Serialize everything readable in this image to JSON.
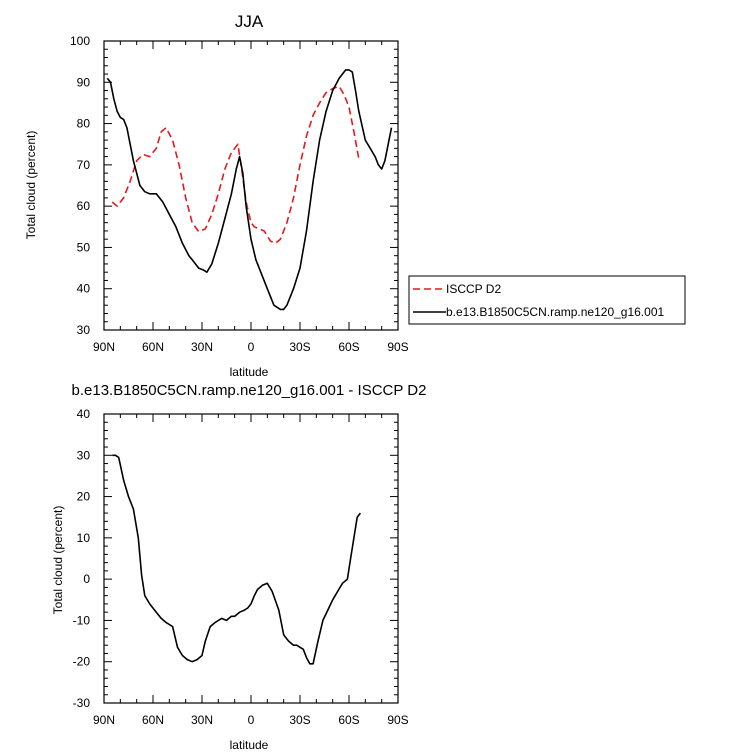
{
  "chart_data": [
    {
      "type": "line",
      "title": "JJA",
      "xlabel": "latitude",
      "ylabel": "Total cloud (percent)",
      "xlim": [
        90,
        -90
      ],
      "ylim": [
        30,
        100
      ],
      "x_ticks": [
        90,
        60,
        30,
        0,
        -30,
        -60,
        -90
      ],
      "x_tick_labels": [
        "90N",
        "60N",
        "30N",
        "0",
        "30S",
        "60S",
        "90S"
      ],
      "y_ticks": [
        30,
        40,
        50,
        60,
        70,
        80,
        90,
        100
      ],
      "y_tick_labels": [
        "30",
        "40",
        "50",
        "60",
        "70",
        "80",
        "90",
        "100"
      ],
      "grid": false,
      "legend_position": "outside-right",
      "series": [
        {
          "name": "ISCCP D2",
          "color": "#e41a1c",
          "dash": "dashed",
          "x": [
            85,
            82,
            78,
            74,
            70,
            66,
            62,
            58,
            55,
            52,
            48,
            44,
            40,
            36,
            32,
            28,
            24,
            20,
            16,
            12,
            8,
            5,
            3,
            0,
            -2,
            -5,
            -8,
            -12,
            -15,
            -18,
            -22,
            -26,
            -30,
            -34,
            -38,
            -42,
            -46,
            -50,
            -54,
            -57,
            -60,
            -63,
            -66
          ],
          "y": [
            61,
            60,
            62,
            66,
            71,
            72.5,
            72,
            74,
            78,
            79,
            76,
            70,
            62,
            56,
            53.8,
            54.5,
            58,
            63,
            69,
            73,
            75,
            67,
            61,
            56,
            55,
            54.5,
            54,
            51.5,
            51,
            52,
            56,
            62,
            70,
            77,
            82,
            85,
            87.5,
            88.5,
            89,
            87,
            84,
            78,
            71.5
          ]
        },
        {
          "name": "b.e13.B1850C5CN.ramp.ne120_g16.001",
          "color": "#000000",
          "dash": "solid",
          "x": [
            88,
            86,
            84,
            82,
            80,
            78,
            76,
            72,
            68,
            65,
            62,
            58,
            54,
            50,
            46,
            42,
            38,
            36,
            32,
            29,
            27,
            24,
            20,
            16,
            12,
            9,
            7,
            5,
            3,
            0,
            -3,
            -6,
            -10,
            -14,
            -18,
            -20,
            -22,
            -26,
            -30,
            -34,
            -38,
            -42,
            -46,
            -50,
            -54,
            -58,
            -60,
            -62,
            -64,
            -66,
            -70,
            -73,
            -76,
            -78,
            -80,
            -82,
            -86
          ],
          "y": [
            91,
            90,
            86,
            83,
            81.5,
            81,
            79,
            71,
            65,
            63.5,
            63,
            63,
            61,
            58,
            55,
            51,
            48,
            47,
            45,
            44.5,
            44,
            46,
            51,
            57,
            63,
            69,
            72,
            68,
            60,
            52,
            47,
            44,
            40,
            36,
            35,
            35,
            36,
            40,
            45,
            54,
            66,
            76,
            83,
            88,
            91,
            93,
            93,
            92.5,
            88,
            83,
            76,
            74,
            72,
            70,
            69,
            71,
            79
          ]
        }
      ]
    },
    {
      "type": "line",
      "title": "b.e13.B1850C5CN.ramp.ne120_g16.001 - ISCCP D2",
      "xlabel": "latitude",
      "ylabel": "Total cloud (percent)",
      "xlim": [
        90,
        -90
      ],
      "ylim": [
        -30,
        40
      ],
      "x_ticks": [
        90,
        60,
        30,
        0,
        -30,
        -60,
        -90
      ],
      "x_tick_labels": [
        "90N",
        "60N",
        "30N",
        "0",
        "30S",
        "60S",
        "90S"
      ],
      "y_ticks": [
        -30,
        -20,
        -10,
        0,
        10,
        20,
        30,
        40
      ],
      "y_tick_labels": [
        "-30",
        "-20",
        "-10",
        "0",
        "10",
        "20",
        "30",
        "40"
      ],
      "grid": false,
      "series": [
        {
          "color": "#000000",
          "dash": "solid",
          "x": [
            85,
            83,
            81,
            78,
            75,
            72,
            69,
            67,
            65,
            62,
            59,
            57,
            55,
            52,
            48,
            45,
            42,
            39,
            36,
            33,
            30,
            28,
            25,
            22,
            18,
            15,
            12,
            10,
            7,
            4,
            2,
            0,
            -2,
            -4,
            -7,
            -10,
            -13,
            -17,
            -20,
            -23,
            -26,
            -28,
            -30,
            -32,
            -34,
            -36,
            -38,
            -41,
            -44,
            -47,
            -50,
            -53,
            -56,
            -59,
            -61,
            -63,
            -65,
            -67
          ],
          "y": [
            30,
            30,
            29.5,
            24,
            20,
            17,
            10,
            1,
            -4,
            -6,
            -7.5,
            -8.5,
            -9.5,
            -10.5,
            -11.5,
            -16.5,
            -18.5,
            -19.5,
            -20,
            -19.5,
            -18.5,
            -15,
            -11.5,
            -10.5,
            -9.5,
            -10,
            -9,
            -9,
            -8,
            -7.5,
            -7,
            -6,
            -4,
            -2.5,
            -1.5,
            -1,
            -3,
            -7.5,
            -13.5,
            -15,
            -16,
            -16,
            -16.5,
            -17,
            -19,
            -20.5,
            -20.5,
            -15,
            -10,
            -7.5,
            -5,
            -3,
            -1,
            0,
            5,
            10,
            15,
            16
          ]
        }
      ]
    }
  ]
}
